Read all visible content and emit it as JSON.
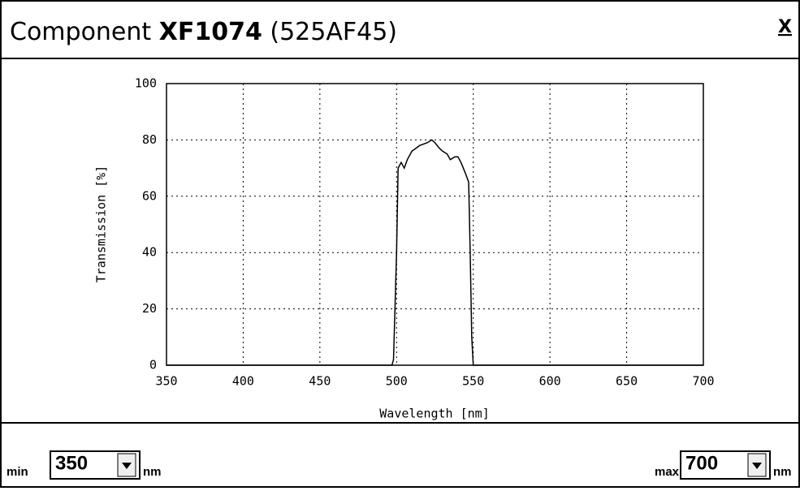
{
  "window": {
    "title_prefix": "Component",
    "title_code": "XF1074",
    "title_suffix": "(525AF45)",
    "close": "X",
    "controls": [
      {
        "label": "min",
        "value": "350",
        "unit": "nm"
      },
      {
        "label": "max",
        "value": "700",
        "unit": "nm"
      }
    ]
  },
  "chart_data": {
    "type": "line",
    "xlabel": "Wavelength [nm]",
    "ylabel": "Transmission [%]",
    "x": [
      350,
      497,
      498,
      500,
      501,
      503,
      505,
      507,
      510,
      515,
      520,
      523,
      525,
      528,
      530,
      533,
      535,
      538,
      540,
      542,
      545,
      547,
      548,
      549,
      550,
      700
    ],
    "series": [
      {
        "color": "#000000",
        "values": [
          0,
          0,
          2,
          40,
          70,
          72,
          70,
          73,
          76,
          78,
          79,
          80,
          79,
          77,
          76,
          75,
          73,
          74,
          74,
          72,
          68,
          65,
          40,
          10,
          0,
          0
        ]
      }
    ],
    "xlim": [
      350,
      700
    ],
    "xticks": [
      350,
      400,
      450,
      500,
      550,
      600,
      650,
      700
    ],
    "ylim": [
      0,
      100
    ],
    "yticks": [
      0,
      20,
      40,
      60,
      80,
      100
    ],
    "grid": true
  }
}
